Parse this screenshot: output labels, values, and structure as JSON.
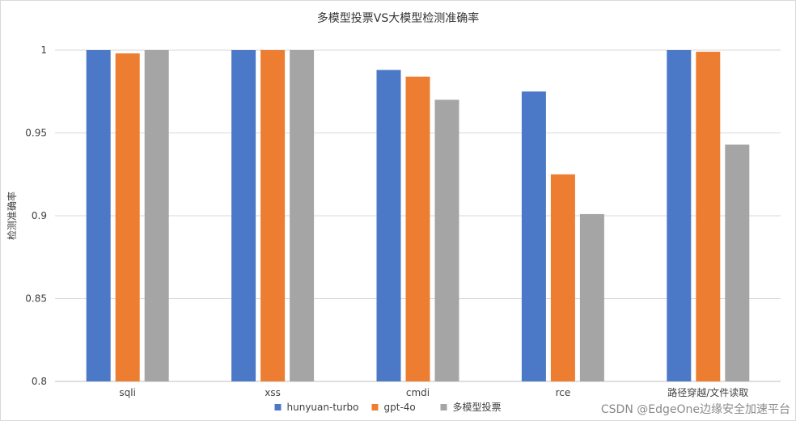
{
  "chart_data": {
    "type": "bar",
    "title": "多模型投票VS大模型检测准确率",
    "xlabel": "",
    "ylabel": "检测准确率",
    "ylim": [
      0.8,
      1.0
    ],
    "yticks": [
      0.8,
      0.85,
      0.9,
      0.95,
      1.0
    ],
    "ytick_labels": [
      "0.8",
      "0.85",
      "0.9",
      "0.95",
      "1"
    ],
    "categories": [
      "sqli",
      "xss",
      "cmdi",
      "rce",
      "路径穿越/文件读取"
    ],
    "series": [
      {
        "name": "hunyuan-turbo",
        "color": "#4c78c8",
        "values": [
          1.0,
          1.0,
          0.988,
          0.975,
          1.0
        ]
      },
      {
        "name": "gpt-4o",
        "color": "#ed7d31",
        "values": [
          0.998,
          1.0,
          0.984,
          0.925,
          0.999
        ]
      },
      {
        "name": "多模型投票",
        "color": "#a5a5a5",
        "values": [
          1.0,
          1.0,
          0.97,
          0.901,
          0.943
        ]
      }
    ],
    "grid": true,
    "legend_position": "bottom"
  },
  "watermark": "CSDN @EdgeOne边缘安全加速平台"
}
